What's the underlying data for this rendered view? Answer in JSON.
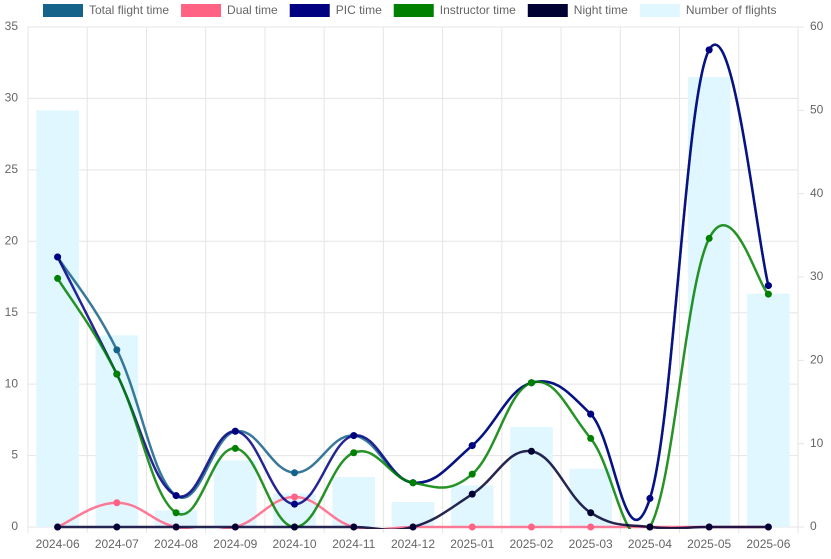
{
  "chart_data": {
    "type": "line",
    "categories": [
      "2024-06",
      "2024-07",
      "2024-08",
      "2024-09",
      "2024-10",
      "2024-11",
      "2024-12",
      "2025-01",
      "2025-02",
      "2025-03",
      "2025-04",
      "2025-05",
      "2025-06"
    ],
    "series": [
      {
        "name": "Total flight time",
        "color": "#15628a",
        "values": [
          18.9,
          12.4,
          2.2,
          6.7,
          3.8,
          6.4,
          3.1,
          5.7,
          10.1,
          7.9,
          2.0,
          33.4,
          16.9
        ]
      },
      {
        "name": "Dual time",
        "color": "#ff6384",
        "values": [
          0,
          1.7,
          0,
          0,
          2.1,
          0,
          0,
          0,
          0,
          0,
          0,
          0,
          0
        ]
      },
      {
        "name": "PIC time",
        "color": "#000080",
        "values": [
          18.9,
          10.7,
          2.2,
          6.7,
          1.6,
          6.4,
          3.1,
          5.7,
          10.1,
          7.9,
          2.0,
          33.4,
          16.9
        ]
      },
      {
        "name": "Instructor time",
        "color": "#008000",
        "values": [
          17.4,
          10.7,
          1.0,
          5.5,
          0,
          5.2,
          3.1,
          3.7,
          10.1,
          6.2,
          0,
          20.2,
          16.3
        ]
      },
      {
        "name": "Night time",
        "color": "#000033",
        "values": [
          0,
          0,
          0,
          0,
          0,
          0,
          0,
          2.3,
          5.3,
          1.0,
          0,
          0,
          0
        ]
      },
      {
        "name": "Number of flights",
        "color": "#e0f7ff",
        "type": "bar",
        "axis": "y2",
        "values": [
          50,
          23,
          2,
          8,
          4,
          6,
          3,
          5,
          12,
          7,
          0,
          54,
          28
        ]
      }
    ],
    "ylim": [
      0,
      35
    ],
    "yticks": [
      0,
      5,
      10,
      15,
      20,
      25,
      30,
      35
    ],
    "y2lim": [
      0,
      60
    ],
    "y2ticks": [
      0,
      10,
      20,
      30,
      40,
      50,
      60
    ],
    "grid": true,
    "legend": "top"
  }
}
